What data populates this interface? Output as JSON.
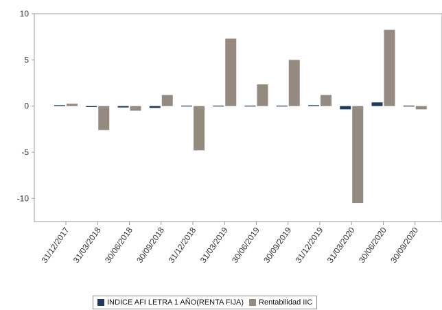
{
  "chart_data": {
    "type": "bar",
    "categories": [
      "31/12/2017",
      "31/03/2018",
      "30/06/2018",
      "30/09/2018",
      "31/12/2018",
      "31/03/2019",
      "30/06/2019",
      "30/09/2019",
      "31/12/2019",
      "31/03/2020",
      "30/06/2020",
      "30/09/2020"
    ],
    "series": [
      {
        "name": "INDICE AFI LETRA 1 AÑO(RENTA FIJA)",
        "color": "#1f3a5f",
        "values": [
          0.1,
          -0.1,
          -0.15,
          -0.2,
          0.05,
          0.02,
          0.05,
          0.02,
          0.1,
          -0.35,
          0.4,
          0.0
        ]
      },
      {
        "name": "Rentabilidad IIC",
        "color": "#958a7f",
        "values": [
          0.25,
          -2.6,
          -0.5,
          1.2,
          -4.8,
          7.3,
          2.35,
          5.0,
          1.2,
          -10.5,
          8.25,
          -0.35
        ]
      }
    ],
    "yticks": [
      10,
      5,
      0,
      -5,
      -10
    ],
    "ylim": [
      -12.5,
      10
    ],
    "grid": false,
    "legend_position": "bottom"
  }
}
